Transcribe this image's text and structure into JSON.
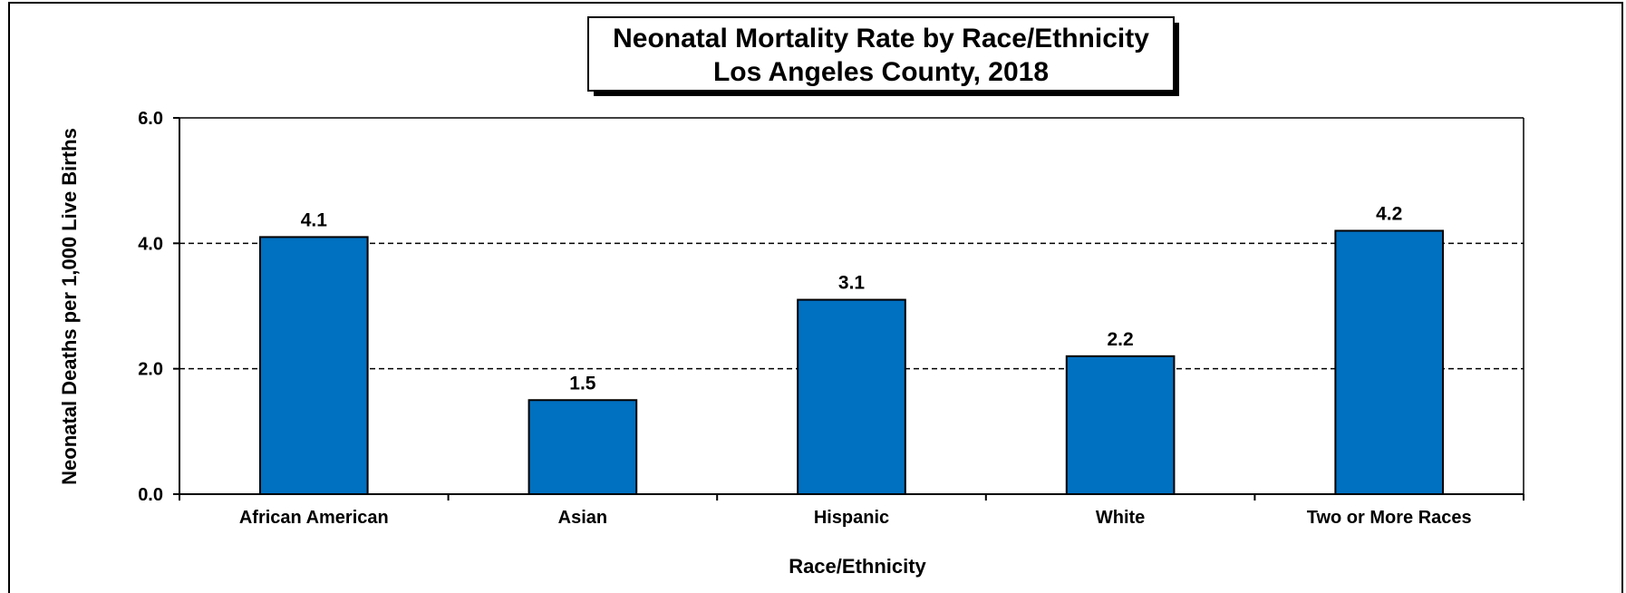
{
  "chart_data": {
    "type": "bar",
    "title": "Neonatal Mortality Rate by Race/Ethnicity",
    "subtitle": "Los Angeles County, 2018",
    "xlabel": "Race/Ethnicity",
    "ylabel": "Neonatal Deaths per 1,000 Live Births",
    "categories": [
      "African American",
      "Asian",
      "Hispanic",
      "White",
      "Two or More Races"
    ],
    "values": [
      4.1,
      1.5,
      3.1,
      2.2,
      4.2
    ],
    "value_labels": [
      "4.1",
      "1.5",
      "3.1",
      "2.2",
      "4.2"
    ],
    "ylim": [
      0,
      6
    ],
    "yticks": [
      0,
      2,
      4,
      6
    ],
    "ytick_labels": [
      "0.0",
      "2.0",
      "4.0",
      "6.0"
    ],
    "grid": "horizontal dashed",
    "bar_color": "#0070C0",
    "legend": "none"
  }
}
